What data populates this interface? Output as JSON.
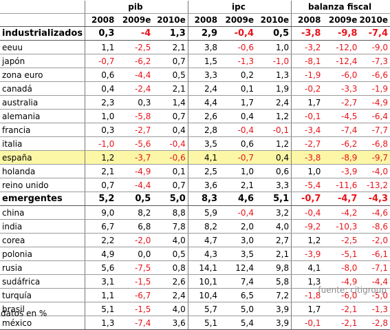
{
  "table": {
    "headers": {
      "groups": [
        "pib",
        "ipc",
        "balanza fiscal"
      ],
      "years": [
        "2008",
        "2009e",
        "2010e"
      ]
    },
    "rows": [
      {
        "label": "industrializados",
        "type": "group",
        "values": [
          "0,3",
          "-4",
          "1,3",
          "2,9",
          "-0,4",
          "0,5",
          "-3,8",
          "-9,8",
          "-7,4"
        ]
      },
      {
        "label": "eeuu",
        "values": [
          "1,1",
          "-2,5",
          "2,1",
          "3,8",
          "-0,6",
          "1,0",
          "-3,2",
          "-12,0",
          "-9,0"
        ]
      },
      {
        "label": "japón",
        "values": [
          "-0,7",
          "-6,2",
          "0,7",
          "1,5",
          "-1,3",
          "-1,0",
          "-8,1",
          "-12,4",
          "-7,3"
        ]
      },
      {
        "label": "zona euro",
        "values": [
          "0,6",
          "-4,4",
          "0,5",
          "3,3",
          "0,2",
          "1,3",
          "-1,9",
          "-6,0",
          "-6,6"
        ]
      },
      {
        "label": "canadá",
        "values": [
          "0,4",
          "-2,4",
          "2,1",
          "2,4",
          "0,1",
          "1,9",
          "-0,2",
          "-3,3",
          "-1,9"
        ]
      },
      {
        "label": "australia",
        "values": [
          "2,3",
          "0,3",
          "1,4",
          "4,4",
          "1,7",
          "2,4",
          "1,7",
          "-2,7",
          "-4,9"
        ]
      },
      {
        "label": "alemania",
        "values": [
          "1,0",
          "-5,8",
          "0,7",
          "2,6",
          "0,4",
          "1,2",
          "-0,1",
          "-4,5",
          "-6,4"
        ]
      },
      {
        "label": "francia",
        "values": [
          "0,3",
          "-2,7",
          "0,4",
          "2,8",
          "-0,4",
          "-0,1",
          "-3,4",
          "-7,4",
          "-7,7"
        ]
      },
      {
        "label": "italia",
        "values": [
          "-1,0",
          "-5,6",
          "-0,4",
          "3,5",
          "0,6",
          "1,2",
          "-2,7",
          "-6,2",
          "-6,8"
        ]
      },
      {
        "label": "españa",
        "type": "highlight",
        "values": [
          "1,2",
          "-3,7",
          "-0,6",
          "4,1",
          "-0,7",
          "0,4",
          "-3,8",
          "-8,9",
          "-9,7"
        ]
      },
      {
        "label": "holanda",
        "values": [
          "2,1",
          "-4,9",
          "0,1",
          "2,5",
          "1,0",
          "0,6",
          "1,0",
          "-3,9",
          "-4,0"
        ]
      },
      {
        "label": "reino unido",
        "values": [
          "0,7",
          "-4,4",
          "0,7",
          "3,6",
          "2,1",
          "3,3",
          "-5,4",
          "-11,6",
          "-13,2"
        ]
      },
      {
        "label": "emergentes",
        "type": "group",
        "values": [
          "5,2",
          "0,5",
          "5,0",
          "8,3",
          "4,6",
          "5,1",
          "-0,7",
          "-4,7",
          "-4,3"
        ]
      },
      {
        "label": "china",
        "values": [
          "9,0",
          "8,2",
          "8,8",
          "5,9",
          "-0,4",
          "3,2",
          "-0,4",
          "-4,2",
          "-4,6"
        ]
      },
      {
        "label": "india",
        "values": [
          "6,7",
          "6,8",
          "7,8",
          "8,2",
          "2,0",
          "4,0",
          "-9,2",
          "-10,3",
          "-8,6"
        ]
      },
      {
        "label": "corea",
        "values": [
          "2,2",
          "-2,0",
          "4,0",
          "4,7",
          "3,0",
          "2,7",
          "1,2",
          "-2,5",
          "-2,0"
        ]
      },
      {
        "label": "polonia",
        "values": [
          "4,9",
          "0,0",
          "0,5",
          "4,3",
          "3,5",
          "2,1",
          "-3,9",
          "-5,1",
          "-6,1"
        ]
      },
      {
        "label": "rusia",
        "values": [
          "5,6",
          "-7,5",
          "0,8",
          "14,1",
          "12,4",
          "9,8",
          "4,1",
          "-8,0",
          "-7,1"
        ]
      },
      {
        "label": "sudáfrica",
        "values": [
          "3,1",
          "-1,5",
          "2,6",
          "10,1",
          "7,4",
          "5,8",
          "1,3",
          "-4,9",
          "-4,4"
        ]
      },
      {
        "label": "turquía",
        "values": [
          "1,1",
          "-6,7",
          "2,4",
          "10,4",
          "6,5",
          "7,2",
          "-1,8",
          "-6,0",
          "-5,0"
        ]
      },
      {
        "label": "brasil",
        "values": [
          "5,1",
          "-1,5",
          "4,0",
          "5,7",
          "5,0",
          "3,9",
          "1,7",
          "-2,1",
          "-1,3"
        ]
      },
      {
        "label": "méxico",
        "values": [
          "1,3",
          "-7,4",
          "3,6",
          "5,1",
          "5,4",
          "3,9",
          "-0,1",
          "-2,1",
          "-2,8"
        ]
      }
    ]
  },
  "source": "fuente: citigroup",
  "note": "datos en %",
  "colors": {
    "negative": "#e8141a",
    "highlight": "#fbf7a6",
    "source": "#8a8a8a"
  }
}
